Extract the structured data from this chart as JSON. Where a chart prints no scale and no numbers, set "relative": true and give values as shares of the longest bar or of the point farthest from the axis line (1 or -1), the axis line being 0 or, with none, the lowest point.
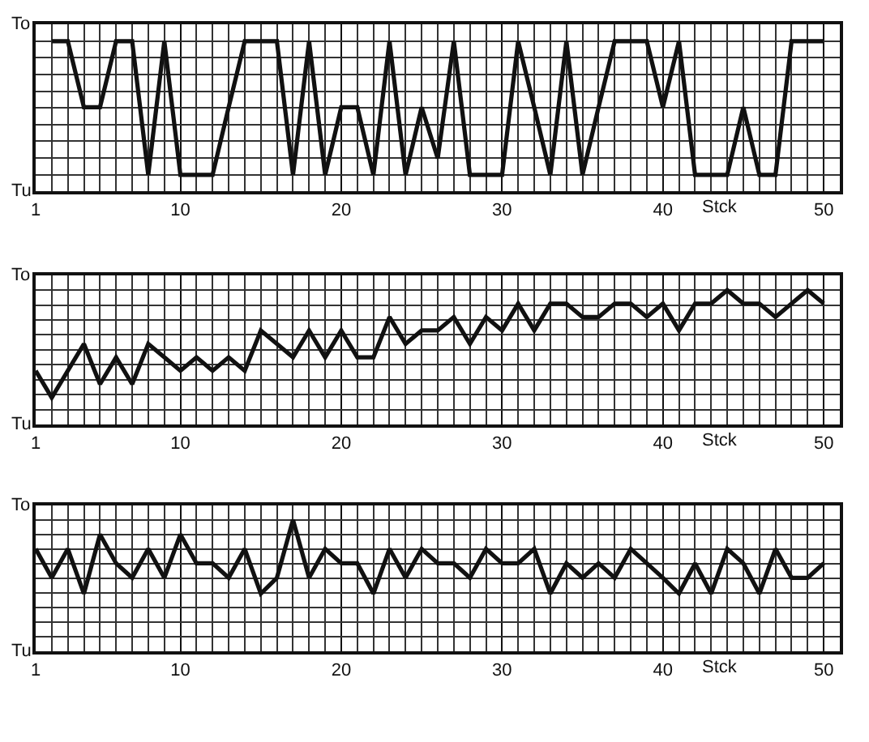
{
  "chart_data": [
    {
      "type": "line",
      "relative": true,
      "x": [
        2,
        3,
        4,
        5,
        6,
        7,
        8,
        9,
        10,
        11,
        12,
        13,
        14,
        15,
        16,
        17,
        18,
        19,
        20,
        21,
        22,
        23,
        24,
        25,
        26,
        27,
        28,
        29,
        30,
        31,
        32,
        33,
        34,
        35,
        36,
        37,
        38,
        39,
        40,
        41,
        42,
        43,
        44,
        45,
        46,
        47,
        48,
        49,
        50
      ],
      "series": [
        {
          "color": "#111111",
          "values": [
            1,
            1,
            0.56,
            0.56,
            1,
            1,
            0.11,
            1,
            0.11,
            0.11,
            0.11,
            0.56,
            1,
            1,
            1,
            0.11,
            1,
            0.11,
            0.56,
            0.56,
            0.11,
            1,
            0.11,
            0.56,
            0.22,
            1,
            0.11,
            0.11,
            0.11,
            1,
            0.56,
            0.11,
            1,
            0.11,
            0.56,
            1,
            1,
            1,
            0.56,
            1,
            0.11,
            0.11,
            0.11,
            0.56,
            0.11,
            0.11,
            1,
            1,
            1
          ]
        }
      ],
      "xlim": [
        1,
        51
      ],
      "xticks": [
        1,
        10,
        20,
        30,
        40,
        50
      ],
      "xlabel": "Stck",
      "annotations": [
        "To",
        "Tu"
      ],
      "grid": true
    },
    {
      "type": "line",
      "relative": true,
      "x": [
        1,
        2,
        3,
        4,
        5,
        6,
        7,
        8,
        9,
        10,
        11,
        12,
        13,
        14,
        15,
        16,
        17,
        18,
        19,
        20,
        21,
        22,
        23,
        24,
        25,
        26,
        27,
        28,
        29,
        30,
        31,
        32,
        33,
        34,
        35,
        36,
        37,
        38,
        39,
        40,
        41,
        42,
        43,
        44,
        45,
        46,
        47,
        48,
        49,
        50
      ],
      "series": [
        {
          "color": "#111111",
          "values": [
            0.4,
            0.2,
            0.4,
            0.6,
            0.3,
            0.5,
            0.3,
            0.6,
            0.5,
            0.4,
            0.5,
            0.4,
            0.5,
            0.4,
            0.7,
            0.6,
            0.5,
            0.7,
            0.5,
            0.7,
            0.5,
            0.5,
            0.8,
            0.6,
            0.7,
            0.7,
            0.8,
            0.6,
            0.8,
            0.7,
            0.9,
            0.7,
            0.9,
            0.9,
            0.8,
            0.8,
            0.9,
            0.9,
            0.8,
            0.9,
            0.7,
            0.9,
            0.9,
            1,
            0.9,
            0.9,
            0.8,
            0.9,
            1,
            0.9
          ]
        }
      ],
      "xlim": [
        1,
        51
      ],
      "xticks": [
        1,
        10,
        20,
        30,
        40,
        50
      ],
      "xlabel": "Stck",
      "annotations": [
        "To",
        "Tu"
      ],
      "grid": true
    },
    {
      "type": "line",
      "relative": true,
      "x": [
        1,
        2,
        3,
        4,
        5,
        6,
        7,
        8,
        9,
        10,
        11,
        12,
        13,
        14,
        15,
        16,
        17,
        18,
        19,
        20,
        21,
        22,
        23,
        24,
        25,
        26,
        27,
        28,
        29,
        30,
        31,
        32,
        33,
        34,
        35,
        36,
        37,
        38,
        39,
        40,
        41,
        42,
        43,
        44,
        45,
        46,
        47,
        48,
        49,
        50
      ],
      "series": [
        {
          "color": "#111111",
          "values": [
            0.78,
            0.56,
            0.78,
            0.44,
            0.89,
            0.67,
            0.56,
            0.78,
            0.56,
            0.89,
            0.67,
            0.67,
            0.56,
            0.78,
            0.44,
            0.56,
            1,
            0.56,
            0.78,
            0.67,
            0.67,
            0.44,
            0.78,
            0.56,
            0.78,
            0.67,
            0.67,
            0.56,
            0.78,
            0.67,
            0.67,
            0.78,
            0.44,
            0.67,
            0.56,
            0.67,
            0.56,
            0.78,
            0.67,
            0.56,
            0.44,
            0.67,
            0.44,
            0.78,
            0.67,
            0.44,
            0.78,
            0.56,
            0.56,
            0.67
          ]
        }
      ],
      "xlim": [
        1,
        51
      ],
      "xticks": [
        1,
        10,
        20,
        30,
        40,
        50
      ],
      "xlabel": "Stck",
      "annotations": [
        "To",
        "Tu"
      ],
      "grid": true
    }
  ]
}
